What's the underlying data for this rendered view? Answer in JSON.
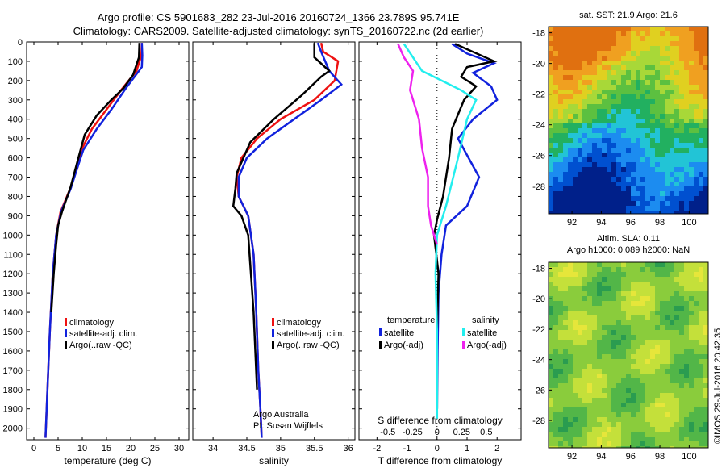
{
  "header": {
    "line1": "Argo profile: CS 5901683_282 23-Jul-2016 20160724_1366 23.789S 95.741E",
    "line2": "Climatology: CARS2009. Satellite-adjusted climatology: synTS_20160722.nc (2d earlier)"
  },
  "colors": {
    "climatology": "#ee1111",
    "satellite": "#1122dd",
    "argo": "#000000",
    "sat_s": "#22eeee",
    "argo_s": "#ee22ee"
  },
  "depth_axis": {
    "ticks": [
      0,
      100,
      200,
      300,
      400,
      500,
      600,
      700,
      800,
      900,
      1000,
      1100,
      1200,
      1300,
      1400,
      1500,
      1600,
      1700,
      1800,
      1900,
      2000
    ],
    "range": [
      0,
      2060
    ]
  },
  "chart_data": [
    {
      "type": "line",
      "panel": "temperature",
      "xlabel": "temperature (deg C)",
      "xlim": [
        -1.5,
        32
      ],
      "xticks": [
        0,
        5,
        10,
        15,
        20,
        25,
        30
      ],
      "ylim": [
        2060,
        0
      ],
      "legend": [
        "climatology",
        "satellite-adj. clim.",
        "Argo(..raw -QC)"
      ],
      "series": [
        {
          "name": "climatology",
          "color": "#ee1111",
          "x": [
            22.3,
            22.2,
            21.2,
            18,
            15,
            12,
            10,
            9,
            7.5,
            5.5,
            4.6,
            3.9,
            3.3,
            2.8,
            2.4
          ],
          "y": [
            5,
            70,
            150,
            250,
            350,
            450,
            550,
            650,
            760,
            880,
            1000,
            1200,
            1500,
            1800,
            2050
          ]
        },
        {
          "name": "satellite-adj. clim.",
          "color": "#1122dd",
          "x": [
            22.3,
            22.4,
            22.3,
            19,
            16,
            13,
            10.2,
            9,
            7.6,
            5.6,
            4.6,
            3.9,
            3.3,
            2.8,
            2.4
          ],
          "y": [
            5,
            70,
            130,
            240,
            350,
            450,
            560,
            650,
            760,
            880,
            1000,
            1200,
            1500,
            1800,
            2050
          ]
        },
        {
          "name": "Argo(..raw -QC)",
          "color": "#000000",
          "x": [
            21.8,
            21.7,
            20.5,
            18.5,
            16,
            13,
            10.5,
            9.2,
            7.6,
            5.8,
            5,
            4.6,
            4.1,
            3.6
          ],
          "y": [
            5,
            80,
            170,
            240,
            300,
            380,
            480,
            600,
            750,
            880,
            950,
            1050,
            1200,
            1400
          ]
        }
      ]
    },
    {
      "type": "line",
      "panel": "salinity",
      "xlabel": "salinity",
      "xlim": [
        33.7,
        36.1
      ],
      "xticks": [
        34,
        34.5,
        35,
        35.5,
        36
      ],
      "ylim": [
        2060,
        0
      ],
      "legend": [
        "climatology",
        "satellite-adj. clim.",
        "Argo(..raw -QC)"
      ],
      "note_lines": [
        "Argo Australia",
        "PI: Susan Wijffels"
      ],
      "series": [
        {
          "name": "climatology",
          "color": "#ee1111",
          "x": [
            35.6,
            35.63,
            35.85,
            35.8,
            35.5,
            35.0,
            34.65,
            34.42,
            34.35,
            34.38,
            34.52,
            34.6,
            34.64,
            34.67,
            34.7,
            34.72
          ],
          "y": [
            5,
            50,
            100,
            200,
            300,
            400,
            500,
            600,
            700,
            800,
            900,
            1100,
            1400,
            1700,
            1900,
            2050
          ]
        },
        {
          "name": "satellite-adj. clim.",
          "color": "#1122dd",
          "x": [
            35.55,
            35.6,
            35.72,
            35.9,
            35.6,
            35.2,
            34.8,
            34.5,
            34.38,
            34.38,
            34.52,
            34.6,
            34.64,
            34.67,
            34.7,
            34.72
          ],
          "y": [
            5,
            50,
            150,
            220,
            300,
            400,
            500,
            600,
            700,
            800,
            900,
            1100,
            1400,
            1700,
            1900,
            2050
          ]
        },
        {
          "name": "Argo(..raw -QC)",
          "color": "#000000",
          "x": [
            35.5,
            35.5,
            35.72,
            35.6,
            35.45,
            35.3,
            34.9,
            34.55,
            34.35,
            34.33,
            34.3,
            34.42,
            34.52,
            34.6,
            34.65
          ],
          "y": [
            5,
            80,
            150,
            180,
            230,
            280,
            400,
            520,
            680,
            760,
            850,
            900,
            1000,
            1400,
            1800
          ]
        }
      ]
    },
    {
      "type": "line",
      "panel": "differences",
      "xlabel": "T difference from climatology",
      "x2label": "S difference from climatology",
      "xlim": [
        -2.6,
        2.8
      ],
      "xticks": [
        -2,
        -1,
        0,
        1,
        2
      ],
      "x2ticks": [
        "-0.5",
        "-0.25",
        "0",
        "0.25",
        "0.5"
      ],
      "ylim": [
        2060,
        0
      ],
      "legend_titles": [
        "temperature",
        "salinity"
      ],
      "legend": [
        "satellite",
        "Argo(-adj)",
        "satellite",
        "Argo(-adj)"
      ],
      "series": [
        {
          "name": "satellite",
          "group": "temperature",
          "color": "#1122dd",
          "x": [
            0.5,
            1.0,
            1.9,
            1.2,
            1.8,
            2.0,
            1.2,
            0.7,
            1.4,
            1.0,
            0.3,
            0.15,
            0.05,
            0.02,
            0.0
          ],
          "y": [
            10,
            60,
            110,
            160,
            230,
            300,
            400,
            500,
            700,
            850,
            950,
            1100,
            1300,
            1600,
            1900
          ]
        },
        {
          "name": "Argo(-adj)",
          "group": "temperature",
          "color": "#000000",
          "x": [
            0.6,
            1.9,
            1.0,
            0.8,
            1.3,
            0.9,
            0.5,
            0.4,
            0.2,
            0.0,
            -0.1,
            0.05,
            0.0,
            0.0
          ],
          "y": [
            10,
            100,
            130,
            180,
            230,
            300,
            450,
            600,
            800,
            920,
            1000,
            1200,
            1500,
            1900
          ]
        },
        {
          "name": "satellite",
          "group": "salinity",
          "color": "#22eeee",
          "x": [
            -1.1,
            -0.5,
            0.8,
            1.3,
            1.0,
            0.7,
            0.3,
            0.0,
            -0.05,
            0.0,
            0.0
          ],
          "y": [
            10,
            150,
            250,
            300,
            400,
            600,
            850,
            1000,
            1200,
            1500,
            1950
          ]
        },
        {
          "name": "Argo(-adj)",
          "group": "salinity",
          "color": "#ee22ee",
          "x": [
            -1.3,
            -1.1,
            -0.8,
            -0.9,
            -0.6,
            -0.5,
            -0.3,
            -0.3,
            -0.2,
            0.0
          ],
          "y": [
            10,
            80,
            150,
            250,
            400,
            550,
            700,
            850,
            950,
            1050
          ]
        }
      ]
    },
    {
      "type": "heatmap",
      "panel": "sst_map",
      "title": "sat. SST: 21.9  Argo: 21.6",
      "xticks": [
        92,
        94,
        96,
        98,
        100
      ],
      "yticks": [
        -18,
        -20,
        -22,
        -24,
        -26,
        -28
      ]
    },
    {
      "type": "heatmap",
      "panel": "sla_map",
      "title_lines": [
        "Altim. SLA: 0.11",
        "Argo h1000: 0.089 h2000: NaN"
      ],
      "xticks": [
        92,
        94,
        96,
        98,
        100
      ],
      "yticks": [
        -18,
        -20,
        -22,
        -24,
        -26,
        -28
      ]
    }
  ],
  "stamp": "©IMOS 29-Jul-2016 20:42:35"
}
